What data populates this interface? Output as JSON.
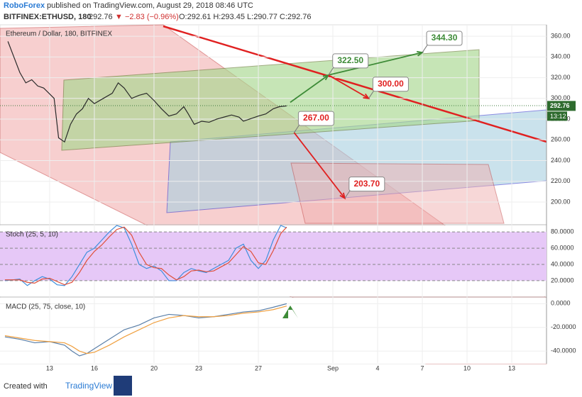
{
  "header": {
    "publisher": "RoboForex",
    "published": "published on TradingView.com, August 29, 2018 08:46 UTC",
    "symbol": "BITFINEX:ETHUSD, 180",
    "last": "292.76",
    "change": "▼ −2.83 (−0.96%)",
    "ohlc": "O:292.61 H:293.45 L:290.77 C:292.76"
  },
  "footer": {
    "created": "Created with",
    "brand": "TradingView"
  },
  "chart_data": [
    {
      "type": "line",
      "legend": "Ethereum / Dollar, 180, BITFINEX",
      "color": "#2a2a2a",
      "x": [
        10.2,
        10.6,
        11,
        11.4,
        11.8,
        12.2,
        12.6,
        13.3,
        13.6,
        14,
        14.4,
        14.8,
        15.2,
        15.6,
        16,
        16.6,
        17.2,
        17.6,
        18,
        18.5,
        19,
        19.5,
        20,
        20.5,
        21,
        21.5,
        22,
        22.3,
        22.7,
        23.2,
        23.7,
        24.2,
        24.7,
        25.2,
        25.7,
        26,
        26.4,
        27,
        27.5,
        28,
        28.4,
        28.9
      ],
      "values": [
        355,
        340,
        325,
        315,
        318,
        312,
        310,
        300,
        262,
        258,
        275,
        285,
        290,
        300,
        295,
        300,
        305,
        315,
        310,
        300,
        303,
        305,
        298,
        290,
        283,
        285,
        292,
        285,
        275,
        278,
        277,
        280,
        282,
        284,
        282,
        278,
        280,
        283,
        285,
        290,
        292,
        292.76
      ],
      "xlim": [
        9.67,
        46.33
      ],
      "ylim": [
        179.5,
        371
      ],
      "xticks": [
        13,
        16,
        20,
        23,
        27,
        {
          "value": 32,
          "label": "Sep"
        },
        {
          "value": 35,
          "label": "4"
        },
        {
          "value": 38,
          "label": "7"
        },
        {
          "value": 41,
          "label": "10"
        },
        {
          "value": 44,
          "label": "13"
        }
      ],
      "yticks": [
        {
          "value": 360,
          "label": "360.00"
        },
        {
          "value": 340,
          "label": "340.00"
        },
        {
          "value": 320,
          "label": "320.00"
        },
        {
          "value": 300,
          "label": "300.00"
        },
        {
          "value": 280,
          "label": "280.00"
        },
        {
          "value": 260,
          "label": "260.00"
        },
        {
          "value": 240,
          "label": "240.00"
        },
        {
          "value": 220,
          "label": "220.00"
        },
        {
          "value": 200,
          "label": "200.00"
        }
      ],
      "last_value": 292.76,
      "last_label": "292.76",
      "countdown": "13:12",
      "annotations": [
        {
          "label": "322.50",
          "x": 31.7,
          "y": 322.5,
          "color": "#3d8b37"
        },
        {
          "label": "344.30",
          "x": 38.0,
          "y": 344.3,
          "color": "#3d8b37"
        },
        {
          "label": "300.00",
          "x": 34.4,
          "y": 300,
          "color": "#e02020"
        },
        {
          "label": "267.00",
          "x": 29.4,
          "y": 267,
          "color": "#e02020"
        },
        {
          "label": "203.70",
          "x": 32.8,
          "y": 203.7,
          "color": "#e02020"
        }
      ]
    },
    {
      "type": "line",
      "legend": "Stoch (25, 5, 10)",
      "background": "#e6c8f7",
      "x": [
        10,
        11,
        11.5,
        12,
        12.5,
        13,
        13.5,
        14,
        14.5,
        15,
        15.5,
        16,
        16.5,
        17,
        17.5,
        18,
        18.5,
        19,
        19.5,
        20,
        20.5,
        21,
        21.5,
        22,
        22.5,
        23,
        23.5,
        24,
        24.5,
        25,
        25.5,
        26,
        26.5,
        27,
        27.5,
        28,
        28.5,
        28.9
      ],
      "series": [
        {
          "color": "#3f8fdc",
          "values": [
            20,
            22,
            14,
            20,
            25,
            22,
            15,
            14,
            25,
            40,
            55,
            60,
            70,
            80,
            88,
            85,
            65,
            40,
            35,
            38,
            32,
            20,
            20,
            30,
            35,
            32,
            30,
            35,
            40,
            45,
            60,
            65,
            45,
            35,
            45,
            70,
            88,
            85
          ]
        },
        {
          "color": "#e0503a",
          "values": [
            21,
            21,
            18,
            17,
            22,
            23,
            19,
            15,
            18,
            30,
            45,
            56,
            64,
            74,
            83,
            86,
            76,
            55,
            40,
            36,
            35,
            27,
            21,
            25,
            32,
            33,
            31,
            32,
            37,
            42,
            52,
            62,
            56,
            42,
            40,
            57,
            78,
            86
          ]
        }
      ],
      "xlim": [
        9.67,
        46.33
      ],
      "ylim": [
        -1,
        88
      ],
      "yticks": [
        {
          "value": 80,
          "label": "80.0000"
        },
        {
          "value": 60,
          "label": "60.0000"
        },
        {
          "value": 40,
          "label": "40.0000"
        },
        {
          "value": 20,
          "label": "20.0000"
        }
      ]
    },
    {
      "type": "line",
      "legend": "MACD (25, 75, close, 10)",
      "x": [
        10,
        11,
        12,
        13,
        14,
        14.5,
        15,
        15.5,
        16,
        17,
        18,
        19,
        20,
        21,
        22,
        23,
        24,
        25,
        26,
        27,
        28,
        28.9
      ],
      "series": [
        {
          "color": "#5a7fa8",
          "values": [
            -28,
            -30,
            -33,
            -32,
            -35,
            -40,
            -44,
            -42,
            -38,
            -30,
            -22,
            -18,
            -12,
            -9,
            -10,
            -12,
            -11,
            -9,
            -7,
            -6,
            -3,
            0
          ]
        },
        {
          "color": "#f0a040",
          "values": [
            -27,
            -29,
            -31,
            -32,
            -33,
            -36,
            -40,
            -42,
            -41,
            -35,
            -28,
            -22,
            -16,
            -12,
            -10,
            -11,
            -11,
            -10,
            -8,
            -7,
            -5,
            -2
          ]
        }
      ],
      "xlim": [
        9.67,
        46.33
      ],
      "ylim": [
        -50,
        5
      ],
      "yticks": [
        {
          "value": 0,
          "label": "0.0000"
        },
        {
          "value": -20,
          "label": "-20.0000"
        },
        {
          "value": -40,
          "label": "-40.0000"
        }
      ]
    }
  ]
}
